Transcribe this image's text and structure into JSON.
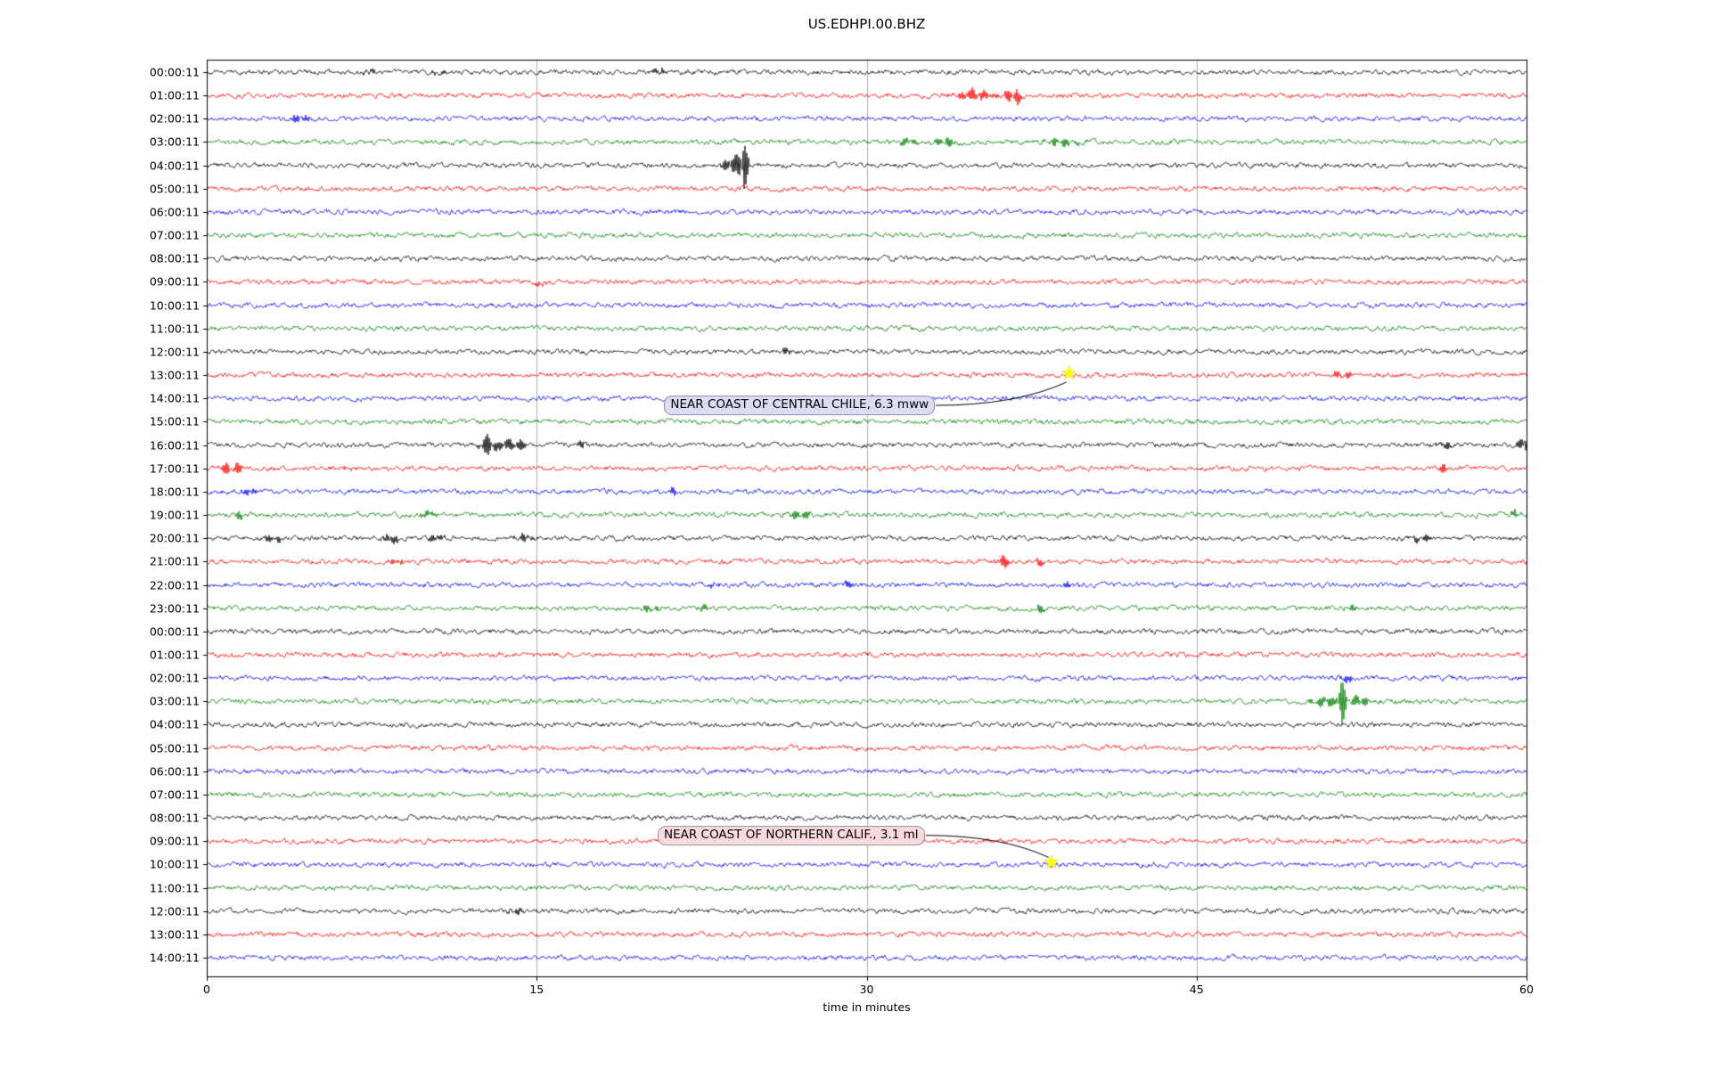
{
  "chart_data": {
    "type": "line",
    "title": "US.EDHPI.00.BHZ",
    "xlabel": "time in minutes",
    "x_range": [
      0,
      60
    ],
    "x_ticks": [
      0,
      15,
      30,
      45,
      60
    ],
    "grid": true,
    "grid_color": "#b0b0b0",
    "background": "#ffffff",
    "trace_color_cycle": [
      "#000000",
      "#ff0000",
      "#0000ff",
      "#008000"
    ],
    "marker": {
      "shape": "star",
      "color": "#ffff00"
    },
    "rows": [
      {
        "label": "00:00:11",
        "spikes": [
          {
            "m": 7.4,
            "a": 3,
            "s": 0.2
          },
          {
            "m": 10.5,
            "a": 3,
            "s": 0.3
          },
          {
            "m": 20.6,
            "a": 4,
            "s": 0.2
          }
        ]
      },
      {
        "label": "01:00:11",
        "spikes": [
          {
            "m": 34.9,
            "a": 7,
            "s": 0.5
          },
          {
            "m": 36.7,
            "a": 11,
            "s": 0.25
          }
        ]
      },
      {
        "label": "02:00:11",
        "spikes": [
          {
            "m": 4.2,
            "a": 5,
            "s": 0.35
          }
        ]
      },
      {
        "label": "03:00:11",
        "spikes": [
          {
            "m": 31.9,
            "a": 4,
            "s": 0.3
          },
          {
            "m": 33.6,
            "a": 5,
            "s": 0.35
          },
          {
            "m": 38.9,
            "a": 5,
            "s": 0.5
          }
        ]
      },
      {
        "label": "04:00:11",
        "spikes": [
          {
            "m": 23.9,
            "a": 12,
            "s": 0.3
          },
          {
            "m": 24.4,
            "a": 42,
            "s": 0.12
          }
        ]
      },
      {
        "label": "05:00:11",
        "spikes": []
      },
      {
        "label": "06:00:11",
        "spikes": []
      },
      {
        "label": "07:00:11",
        "spikes": []
      },
      {
        "label": "08:00:11",
        "spikes": []
      },
      {
        "label": "09:00:11",
        "spikes": [
          {
            "m": 15.2,
            "a": 3,
            "s": 0.2
          }
        ]
      },
      {
        "label": "10:00:11",
        "spikes": []
      },
      {
        "label": "11:00:11",
        "spikes": []
      },
      {
        "label": "12:00:11",
        "spikes": [
          {
            "m": 26.2,
            "a": 3,
            "s": 0.3
          }
        ]
      },
      {
        "label": "13:00:11",
        "spikes": [
          {
            "m": 51.6,
            "a": 4,
            "s": 0.4
          }
        ]
      },
      {
        "label": "14:00:11",
        "spikes": []
      },
      {
        "label": "15:00:11",
        "spikes": []
      },
      {
        "label": "16:00:11",
        "spikes": [
          {
            "m": 12.8,
            "a": 15,
            "s": 0.25
          },
          {
            "m": 13.6,
            "a": 9,
            "s": 0.2
          },
          {
            "m": 14.3,
            "a": 7,
            "s": 0.2
          },
          {
            "m": 17.1,
            "a": 6,
            "s": 0.15
          },
          {
            "m": 56.3,
            "a": 5,
            "s": 0.2
          },
          {
            "m": 59.9,
            "a": 12,
            "s": 0.18
          }
        ]
      },
      {
        "label": "17:00:11",
        "spikes": [
          {
            "m": 0.8,
            "a": 7,
            "s": 0.2
          },
          {
            "m": 1.4,
            "a": 5,
            "s": 0.2
          },
          {
            "m": 6.4,
            "a": 4,
            "s": 0.15
          },
          {
            "m": 13.8,
            "a": 3,
            "s": 0.12
          },
          {
            "m": 56.2,
            "a": 4,
            "s": 0.15
          }
        ]
      },
      {
        "label": "18:00:11",
        "spikes": [
          {
            "m": 1.9,
            "a": 5,
            "s": 0.2
          },
          {
            "m": 21.2,
            "a": 5,
            "s": 0.15
          }
        ]
      },
      {
        "label": "19:00:11",
        "spikes": [
          {
            "m": 1.5,
            "a": 4,
            "s": 0.2
          },
          {
            "m": 10.1,
            "a": 4,
            "s": 0.3
          },
          {
            "m": 26.9,
            "a": 5,
            "s": 0.4
          },
          {
            "m": 59.5,
            "a": 4,
            "s": 0.2
          }
        ]
      },
      {
        "label": "20:00:11",
        "spikes": [
          {
            "m": 3.0,
            "a": 5,
            "s": 0.3
          },
          {
            "m": 8.4,
            "a": 6,
            "s": 0.25
          },
          {
            "m": 10.4,
            "a": 6,
            "s": 0.2
          },
          {
            "m": 14.3,
            "a": 4,
            "s": 0.3
          },
          {
            "m": 55.2,
            "a": 4,
            "s": 0.4
          }
        ]
      },
      {
        "label": "21:00:11",
        "spikes": [
          {
            "m": 8.6,
            "a": 4,
            "s": 0.2
          },
          {
            "m": 36.2,
            "a": 8,
            "s": 0.2
          },
          {
            "m": 37.9,
            "a": 5,
            "s": 0.15
          }
        ]
      },
      {
        "label": "22:00:11",
        "spikes": [
          {
            "m": 23.1,
            "a": 4,
            "s": 0.2
          },
          {
            "m": 29.2,
            "a": 4,
            "s": 0.2
          },
          {
            "m": 39.1,
            "a": 4,
            "s": 0.15
          }
        ]
      },
      {
        "label": "23:00:11",
        "spikes": [
          {
            "m": 20.1,
            "a": 4,
            "s": 0.3
          },
          {
            "m": 22.6,
            "a": 4,
            "s": 0.2
          },
          {
            "m": 37.9,
            "a": 4,
            "s": 0.2
          },
          {
            "m": 52.1,
            "a": 3,
            "s": 0.2
          }
        ]
      },
      {
        "label": "00:00:11",
        "spikes": []
      },
      {
        "label": "01:00:11",
        "spikes": []
      },
      {
        "label": "02:00:11",
        "spikes": [
          {
            "m": 51.8,
            "a": 5,
            "s": 0.15
          }
        ]
      },
      {
        "label": "03:00:11",
        "spikes": [
          {
            "m": 50.9,
            "a": 7,
            "s": 0.4
          },
          {
            "m": 51.6,
            "a": 28,
            "s": 0.12
          },
          {
            "m": 52.4,
            "a": 6,
            "s": 0.3
          }
        ]
      },
      {
        "label": "04:00:11",
        "spikes": []
      },
      {
        "label": "05:00:11",
        "spikes": []
      },
      {
        "label": "06:00:11",
        "spikes": []
      },
      {
        "label": "07:00:11",
        "spikes": []
      },
      {
        "label": "08:00:11",
        "spikes": []
      },
      {
        "label": "09:00:11",
        "spikes": []
      },
      {
        "label": "10:00:11",
        "spikes": []
      },
      {
        "label": "11:00:11",
        "spikes": []
      },
      {
        "label": "12:00:11",
        "spikes": [
          {
            "m": 14.1,
            "a": 3,
            "s": 0.3
          }
        ]
      },
      {
        "label": "13:00:11",
        "spikes": []
      },
      {
        "label": "14:00:11",
        "spikes": []
      }
    ],
    "events": [
      {
        "label": "NEAR COAST OF CENTRAL CHILE, 6.3 mww",
        "row_index": 13,
        "x_minutes": 39.2,
        "box_x_minutes": 20.8,
        "box_row": 14.3,
        "box_color": "#dcdcf5"
      },
      {
        "label": "NEAR COAST OF NORTHERN CALIF., 3.1 ml",
        "row_index": 34,
        "x_minutes": 38.4,
        "box_x_minutes": 20.5,
        "box_row": 32.75,
        "box_color": "#f9dada"
      }
    ]
  }
}
